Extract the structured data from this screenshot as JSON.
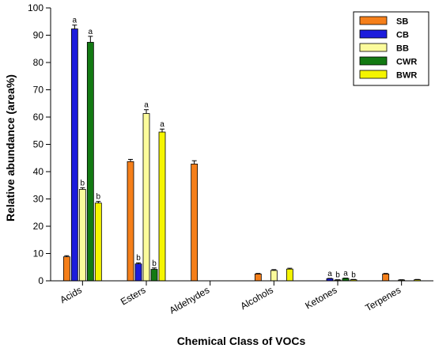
{
  "chart_data": {
    "type": "bar",
    "xlabel": "Chemical Class of VOCs",
    "ylabel": "Relative abundance (area%)",
    "ylim": [
      0,
      100
    ],
    "yticks": [
      0,
      10,
      20,
      30,
      40,
      50,
      60,
      70,
      80,
      90,
      100
    ],
    "legend_position": "top-right",
    "grid": false,
    "categories": [
      "Acids",
      "Esters",
      "Aldehydes",
      "Alcohols",
      "Ketones",
      "Terpenes"
    ],
    "series": [
      {
        "name": "SB",
        "color": "#f57f1a",
        "values": [
          8.8,
          43.7,
          42.8,
          2.5,
          0,
          2.5
        ],
        "errors": [
          0.4,
          0.8,
          1.2,
          0.2,
          0,
          0.2
        ],
        "labels": [
          "",
          "",
          "",
          "",
          "",
          ""
        ]
      },
      {
        "name": "CB",
        "color": "#1c1cdc",
        "values": [
          92.3,
          6.2,
          0,
          0,
          0.8,
          0
        ],
        "errors": [
          1.4,
          0.4,
          0,
          0,
          0.1,
          0
        ],
        "labels": [
          "a",
          "b",
          "",
          "",
          "a",
          ""
        ]
      },
      {
        "name": "BB",
        "color": "#fbfb9c",
        "values": [
          33.5,
          61.3,
          0,
          3.8,
          0.3,
          0.3
        ],
        "errors": [
          0.6,
          1.4,
          0,
          0.3,
          0.1,
          0.1
        ],
        "labels": [
          "b",
          "a",
          "",
          "",
          "b",
          ""
        ]
      },
      {
        "name": "CWR",
        "color": "#137a13",
        "values": [
          87.4,
          4.2,
          0,
          0,
          0.9,
          0
        ],
        "errors": [
          2.2,
          0.5,
          0,
          0,
          0.1,
          0
        ],
        "labels": [
          "a",
          "b",
          "",
          "",
          "a",
          ""
        ]
      },
      {
        "name": "BWR",
        "color": "#f5f500",
        "values": [
          28.5,
          54.5,
          0,
          4.3,
          0.4,
          0.4
        ],
        "errors": [
          0.6,
          1.1,
          0,
          0.3,
          0.1,
          0.1
        ],
        "labels": [
          "b",
          "a",
          "",
          "",
          "b",
          ""
        ]
      }
    ]
  }
}
